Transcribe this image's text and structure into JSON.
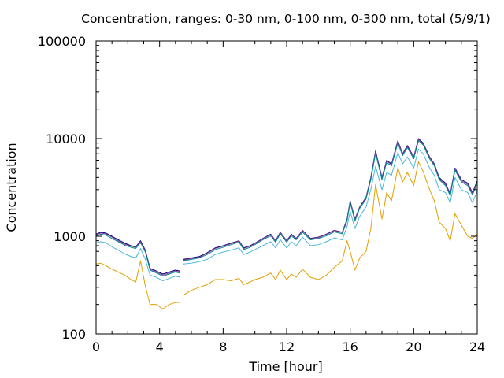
{
  "chart_data": {
    "type": "line",
    "title": "Concentration, ranges: 0-30 nm, 0-100 nm, 0-300 nm, total (5/9/1)",
    "xlabel": "Time [hour]",
    "ylabel": "Concentration",
    "xlim": [
      0,
      24
    ],
    "ylim": [
      100,
      100000
    ],
    "yscale": "log",
    "grid": false,
    "legend": "none",
    "x_ticks": [
      0,
      4,
      8,
      12,
      16,
      20,
      24
    ],
    "x_tick_labels": [
      "0",
      "4",
      "8",
      "12",
      "16",
      "20",
      "24"
    ],
    "y_ticks": [
      100,
      1000,
      10000,
      100000
    ],
    "y_tick_labels": [
      "100",
      "1000",
      "10000",
      "100000"
    ],
    "gap": [
      5.3,
      5.5
    ],
    "series": [
      {
        "color": "#000080",
        "x": [
          0,
          0.3,
          0.6,
          1,
          1.4,
          1.8,
          2.2,
          2.5,
          2.8,
          3.1,
          3.4,
          3.8,
          4.2,
          4.6,
          5,
          5.3,
          5.5,
          6,
          6.5,
          7,
          7.5,
          8,
          8.5,
          9,
          9.3,
          9.7,
          10,
          10.5,
          11,
          11.3,
          11.6,
          12,
          12.3,
          12.6,
          13,
          13.5,
          14,
          14.5,
          15,
          15.5,
          15.8,
          16,
          16.3,
          16.6,
          17,
          17.3,
          17.6,
          18,
          18.3,
          18.6,
          19,
          19.3,
          19.6,
          20,
          20.3,
          20.6,
          21,
          21.3,
          21.6,
          22,
          22.3,
          22.6,
          23,
          23.4,
          23.7,
          24
        ],
        "values": [
          1050,
          1100,
          1080,
          1000,
          920,
          850,
          800,
          780,
          900,
          720,
          470,
          440,
          410,
          430,
          450,
          440,
          580,
          600,
          620,
          680,
          760,
          800,
          850,
          900,
          760,
          800,
          850,
          950,
          1050,
          900,
          1100,
          900,
          1050,
          950,
          1150,
          950,
          980,
          1050,
          1150,
          1100,
          1500,
          2300,
          1500,
          2000,
          2500,
          4000,
          7500,
          4000,
          6000,
          5500,
          9500,
          7000,
          8500,
          6500,
          10000,
          9000,
          6500,
          5500,
          4000,
          3500,
          2700,
          5000,
          3800,
          3500,
          2800,
          3700
        ]
      },
      {
        "color": "#8b3a9b",
        "x": [
          0,
          0.3,
          0.6,
          1,
          1.4,
          1.8,
          2.2,
          2.5,
          2.8,
          3.1,
          3.4,
          3.8,
          4.2,
          4.6,
          5,
          5.3,
          5.5,
          6,
          6.5,
          7,
          7.5,
          8,
          8.5,
          9,
          9.3,
          9.7,
          10,
          10.5,
          11,
          11.3,
          11.6,
          12,
          12.3,
          12.6,
          13,
          13.5,
          14,
          14.5,
          15,
          15.5,
          15.8,
          16,
          16.3,
          16.6,
          17,
          17.3,
          17.6,
          18,
          18.3,
          18.6,
          19,
          19.3,
          19.6,
          20,
          20.3,
          20.6,
          21,
          21.3,
          21.6,
          22,
          22.3,
          22.6,
          23,
          23.4,
          23.7,
          24
        ],
        "values": [
          1030,
          1080,
          1060,
          980,
          900,
          830,
          790,
          770,
          880,
          700,
          460,
          430,
          400,
          420,
          440,
          430,
          570,
          590,
          610,
          670,
          750,
          790,
          840,
          890,
          750,
          790,
          840,
          940,
          1040,
          890,
          1090,
          890,
          1040,
          940,
          1140,
          940,
          970,
          1040,
          1140,
          1090,
          1480,
          2250,
          1480,
          1980,
          2450,
          3900,
          7300,
          3900,
          5900,
          5400,
          9300,
          6900,
          8300,
          6400,
          9800,
          8800,
          6400,
          5400,
          3900,
          3400,
          2650,
          4900,
          3700,
          3400,
          2750,
          3600
        ]
      },
      {
        "color": "#008b8b",
        "x": [
          0,
          0.3,
          0.6,
          1,
          1.4,
          1.8,
          2.2,
          2.5,
          2.8,
          3.1,
          3.4,
          3.8,
          4.2,
          4.6,
          5,
          5.3,
          5.5,
          6,
          6.5,
          7,
          7.5,
          8,
          8.5,
          9,
          9.3,
          9.7,
          10,
          10.5,
          11,
          11.3,
          11.6,
          12,
          12.3,
          12.6,
          13,
          13.5,
          14,
          14.5,
          15,
          15.5,
          15.8,
          16,
          16.3,
          16.6,
          17,
          17.3,
          17.6,
          18,
          18.3,
          18.6,
          19,
          19.3,
          19.6,
          20,
          20.3,
          20.6,
          21,
          21.3,
          21.6,
          22,
          22.3,
          22.6,
          23,
          23.4,
          23.7,
          24
        ],
        "values": [
          1000,
          1050,
          1030,
          950,
          880,
          810,
          770,
          750,
          860,
          690,
          450,
          420,
          390,
          410,
          430,
          420,
          560,
          580,
          600,
          650,
          730,
          770,
          820,
          870,
          730,
          770,
          820,
          920,
          1010,
          870,
          1060,
          870,
          1010,
          920,
          1100,
          920,
          950,
          1010,
          1110,
          1060,
          1430,
          2200,
          1430,
          1930,
          2400,
          3800,
          7100,
          3800,
          5700,
          5250,
          9000,
          6700,
          8100,
          6200,
          9500,
          8600,
          6200,
          5250,
          3800,
          3300,
          2600,
          4750,
          3600,
          3300,
          2650,
          3500
        ]
      },
      {
        "color": "#4bb7d8",
        "x": [
          0,
          0.3,
          0.6,
          1,
          1.4,
          1.8,
          2.2,
          2.5,
          2.8,
          3.1,
          3.4,
          3.8,
          4.2,
          4.6,
          5,
          5.3,
          5.5,
          6,
          6.5,
          7,
          7.5,
          8,
          8.5,
          9,
          9.3,
          9.7,
          10,
          10.5,
          11,
          11.3,
          11.6,
          12,
          12.3,
          12.6,
          13,
          13.5,
          14,
          14.5,
          15,
          15.5,
          15.8,
          16,
          16.3,
          16.6,
          17,
          17.3,
          17.6,
          18,
          18.3,
          18.6,
          19,
          19.3,
          19.6,
          20,
          20.3,
          20.6,
          21,
          21.3,
          21.6,
          22,
          22.3,
          22.6,
          23,
          23.4,
          23.7,
          24
        ],
        "values": [
          850,
          880,
          860,
          780,
          720,
          660,
          620,
          600,
          750,
          580,
          400,
          380,
          350,
          370,
          390,
          380,
          520,
          530,
          550,
          580,
          650,
          690,
          720,
          760,
          650,
          690,
          730,
          800,
          880,
          760,
          920,
          760,
          880,
          800,
          980,
          800,
          820,
          880,
          960,
          920,
          1250,
          1800,
          1200,
          1600,
          2000,
          3000,
          5200,
          3000,
          4500,
          4200,
          7200,
          5500,
          6500,
          5000,
          7800,
          7000,
          5000,
          4200,
          3000,
          2800,
          2200,
          4000,
          3000,
          2800,
          2200,
          2900
        ]
      },
      {
        "color": "#e0a000",
        "x": [
          0,
          0.3,
          0.6,
          1,
          1.4,
          1.8,
          2.2,
          2.5,
          2.8,
          3.1,
          3.4,
          3.8,
          4.2,
          4.6,
          5,
          5.3,
          5.5,
          6,
          6.5,
          7,
          7.5,
          8,
          8.5,
          9,
          9.3,
          9.7,
          10,
          10.5,
          11,
          11.3,
          11.6,
          12,
          12.3,
          12.6,
          13,
          13.5,
          14,
          14.5,
          15,
          15.5,
          15.8,
          16,
          16.3,
          16.6,
          17,
          17.3,
          17.6,
          18,
          18.3,
          18.6,
          19,
          19.3,
          19.6,
          20,
          20.3,
          20.6,
          21,
          21.3,
          21.6,
          22,
          22.3,
          22.6,
          23,
          23.4,
          23.7,
          24
        ],
        "values": [
          520,
          530,
          500,
          460,
          430,
          400,
          360,
          340,
          560,
          310,
          200,
          200,
          180,
          200,
          210,
          210,
          250,
          280,
          300,
          320,
          360,
          360,
          350,
          370,
          320,
          340,
          360,
          380,
          420,
          360,
          450,
          360,
          410,
          380,
          460,
          380,
          360,
          400,
          480,
          560,
          900,
          700,
          450,
          600,
          700,
          1200,
          3400,
          1500,
          2800,
          2300,
          5000,
          3600,
          4500,
          3300,
          5800,
          4600,
          3000,
          2300,
          1400,
          1200,
          900,
          1700,
          1300,
          1000,
          950,
          1050
        ]
      }
    ]
  }
}
